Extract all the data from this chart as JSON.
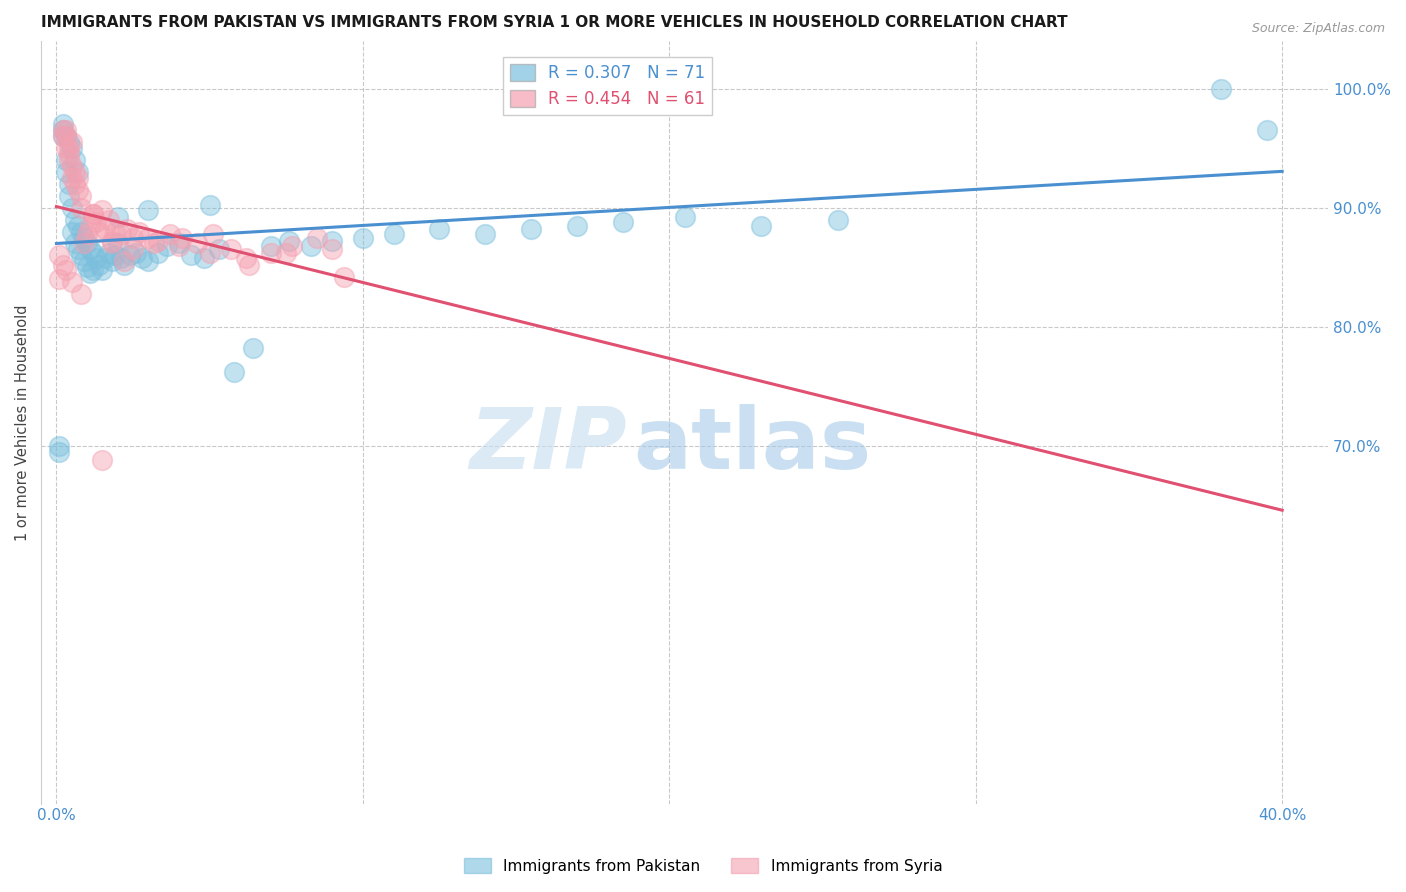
{
  "title": "IMMIGRANTS FROM PAKISTAN VS IMMIGRANTS FROM SYRIA 1 OR MORE VEHICLES IN HOUSEHOLD CORRELATION CHART",
  "source": "Source: ZipAtlas.com",
  "ylabel": "1 or more Vehicles in Household",
  "xlim": [
    -0.005,
    0.415
  ],
  "ylim": [
    0.4,
    1.04
  ],
  "xtick_positions": [
    0.0,
    0.1,
    0.2,
    0.3,
    0.4
  ],
  "xticklabels": [
    "0.0%",
    "",
    "",
    "",
    "40.0%"
  ],
  "yticks_right": [
    0.7,
    0.8,
    0.9,
    1.0
  ],
  "ytick_right_labels": [
    "70.0%",
    "80.0%",
    "90.0%",
    "100.0%"
  ],
  "pakistan_color": "#7bbfdd",
  "syria_color": "#f4a0b0",
  "pakistan_line_color": "#4a90d0",
  "syria_line_color": "#e05070",
  "R_pakistan": 0.307,
  "N_pakistan": 71,
  "R_syria": 0.454,
  "N_syria": 61,
  "legend_pakistan": "Immigrants from Pakistan",
  "legend_syria": "Immigrants from Syria",
  "watermark_zip": "ZIP",
  "watermark_atlas": "atlas",
  "pakistan_x": [
    0.001,
    0.001,
    0.002,
    0.002,
    0.002,
    0.003,
    0.003,
    0.003,
    0.004,
    0.004,
    0.004,
    0.005,
    0.005,
    0.005,
    0.006,
    0.006,
    0.006,
    0.007,
    0.007,
    0.007,
    0.008,
    0.008,
    0.009,
    0.009,
    0.01,
    0.01,
    0.011,
    0.011,
    0.012,
    0.012,
    0.013,
    0.014,
    0.015,
    0.016,
    0.017,
    0.018,
    0.019,
    0.02,
    0.021,
    0.022,
    0.024,
    0.026,
    0.028,
    0.03,
    0.033,
    0.036,
    0.04,
    0.044,
    0.048,
    0.053,
    0.058,
    0.064,
    0.07,
    0.076,
    0.083,
    0.09,
    0.1,
    0.11,
    0.125,
    0.14,
    0.155,
    0.17,
    0.185,
    0.205,
    0.23,
    0.255,
    0.03,
    0.02,
    0.05,
    0.38,
    0.395
  ],
  "pakistan_y": [
    0.695,
    0.7,
    0.96,
    0.965,
    0.97,
    0.93,
    0.94,
    0.96,
    0.91,
    0.92,
    0.955,
    0.88,
    0.9,
    0.95,
    0.87,
    0.89,
    0.94,
    0.865,
    0.885,
    0.93,
    0.86,
    0.88,
    0.855,
    0.875,
    0.85,
    0.87,
    0.845,
    0.865,
    0.848,
    0.862,
    0.858,
    0.852,
    0.848,
    0.858,
    0.862,
    0.855,
    0.86,
    0.87,
    0.858,
    0.852,
    0.86,
    0.862,
    0.858,
    0.855,
    0.862,
    0.868,
    0.87,
    0.86,
    0.858,
    0.865,
    0.762,
    0.782,
    0.868,
    0.872,
    0.868,
    0.872,
    0.875,
    0.878,
    0.882,
    0.878,
    0.882,
    0.885,
    0.888,
    0.892,
    0.885,
    0.89,
    0.898,
    0.892,
    0.902,
    1.0,
    0.965
  ],
  "syria_x": [
    0.001,
    0.001,
    0.002,
    0.002,
    0.003,
    0.003,
    0.003,
    0.004,
    0.004,
    0.004,
    0.005,
    0.005,
    0.005,
    0.006,
    0.006,
    0.007,
    0.007,
    0.008,
    0.008,
    0.009,
    0.01,
    0.011,
    0.012,
    0.013,
    0.014,
    0.015,
    0.016,
    0.017,
    0.018,
    0.019,
    0.021,
    0.023,
    0.025,
    0.027,
    0.03,
    0.033,
    0.037,
    0.041,
    0.046,
    0.051,
    0.057,
    0.063,
    0.07,
    0.077,
    0.085,
    0.094,
    0.012,
    0.018,
    0.025,
    0.032,
    0.04,
    0.05,
    0.062,
    0.075,
    0.09,
    0.022,
    0.015,
    0.008,
    0.005,
    0.003,
    0.002
  ],
  "syria_y": [
    0.84,
    0.86,
    0.96,
    0.965,
    0.95,
    0.96,
    0.965,
    0.94,
    0.95,
    0.945,
    0.925,
    0.935,
    0.955,
    0.92,
    0.93,
    0.915,
    0.925,
    0.9,
    0.91,
    0.87,
    0.878,
    0.885,
    0.895,
    0.888,
    0.88,
    0.898,
    0.882,
    0.89,
    0.872,
    0.88,
    0.878,
    0.882,
    0.875,
    0.88,
    0.875,
    0.872,
    0.878,
    0.875,
    0.87,
    0.878,
    0.865,
    0.852,
    0.862,
    0.868,
    0.875,
    0.842,
    0.895,
    0.87,
    0.865,
    0.87,
    0.868,
    0.862,
    0.858,
    0.862,
    0.865,
    0.855,
    0.688,
    0.828,
    0.838,
    0.848,
    0.852
  ]
}
